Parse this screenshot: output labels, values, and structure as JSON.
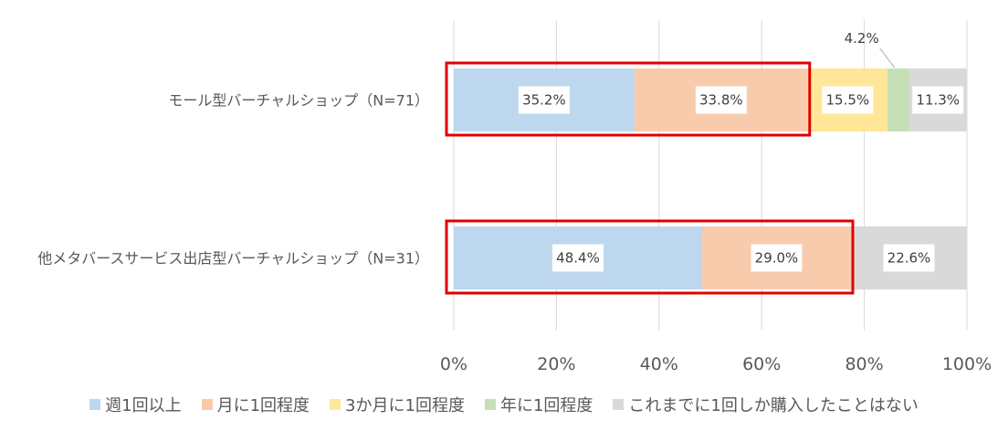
{
  "chart_data": {
    "type": "bar",
    "orientation": "horizontal",
    "stacked": true,
    "title": "",
    "xlabel": "",
    "ylabel": "",
    "xlim": [
      0,
      100
    ],
    "x_ticks": [
      "0%",
      "20%",
      "40%",
      "60%",
      "80%",
      "100%"
    ],
    "grid": true,
    "legend_position": "bottom",
    "categories": [
      "モール型バーチャルショップ（N=71）",
      "他メタバースサービス出店型バーチャルショップ（N=31）"
    ],
    "series": [
      {
        "name": "週1回以上",
        "color": "#BDD7EE",
        "values": [
          35.2,
          48.4
        ],
        "labels": [
          "35.2%",
          "48.4%"
        ]
      },
      {
        "name": "月に1回程度",
        "color": "#F8CBAD",
        "values": [
          33.8,
          29.0
        ],
        "labels": [
          "33.8%",
          "29.0%"
        ]
      },
      {
        "name": "3か月に1回程度",
        "color": "#FFE699",
        "values": [
          15.5,
          0
        ],
        "labels": [
          "15.5%",
          ""
        ]
      },
      {
        "name": "年に1回程度",
        "color": "#C5E0B4",
        "values": [
          4.2,
          0
        ],
        "labels": [
          "4.2%",
          ""
        ]
      },
      {
        "name": "これまでに1回しか購入したことはない",
        "color": "#D9D9D9",
        "values": [
          11.3,
          22.6
        ],
        "labels": [
          "11.3%",
          "22.6%"
        ]
      }
    ],
    "highlight_series_count": 2,
    "highlight_color": "#E00000"
  }
}
